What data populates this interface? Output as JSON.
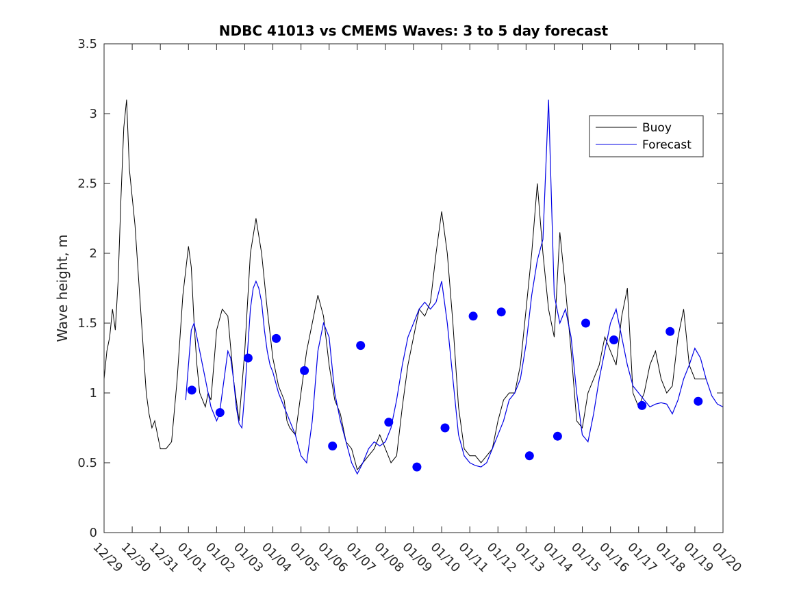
{
  "chart_data": {
    "type": "line",
    "title": "NDBC 41013 vs CMEMS Waves: 3 to 5 day forecast",
    "xlabel": "",
    "ylabel": "Wave height, m",
    "xlim": [
      0,
      22
    ],
    "ylim": [
      0,
      3.5
    ],
    "x_unit": "days since 12/29",
    "x_ticks": [
      0,
      1,
      2,
      3,
      4,
      5,
      6,
      7,
      8,
      9,
      10,
      11,
      12,
      13,
      14,
      15,
      16,
      17,
      18,
      19,
      20,
      21,
      22
    ],
    "x_tick_labels": [
      "12/29",
      "12/30",
      "12/31",
      "01/01",
      "01/02",
      "01/03",
      "01/04",
      "01/05",
      "01/06",
      "01/07",
      "01/08",
      "01/09",
      "01/10",
      "01/11",
      "01/12",
      "01/13",
      "01/14",
      "01/15",
      "01/16",
      "01/17",
      "01/18",
      "01/19",
      "01/20"
    ],
    "y_ticks": [
      0,
      0.5,
      1,
      1.5,
      2,
      2.5,
      3,
      3.5
    ],
    "y_tick_labels": [
      "0",
      "0.5",
      "1",
      "1.5",
      "2",
      "2.5",
      "3",
      "3.5"
    ],
    "legend": {
      "position": "top-right",
      "entries": [
        "Buoy",
        "Forecast"
      ]
    },
    "colors": {
      "buoy": "#000000",
      "forecast": "#0000e6",
      "marker": "#0000ff",
      "axis": "#262626"
    },
    "series": [
      {
        "name": "Buoy",
        "x": [
          0,
          0.1,
          0.2,
          0.3,
          0.4,
          0.5,
          0.6,
          0.7,
          0.8,
          0.9,
          1.0,
          1.1,
          1.2,
          1.3,
          1.4,
          1.5,
          1.6,
          1.7,
          1.8,
          1.9,
          2.0,
          2.2,
          2.4,
          2.6,
          2.8,
          3.0,
          3.1,
          3.2,
          3.3,
          3.4,
          3.5,
          3.6,
          3.7,
          3.8,
          3.9,
          4.0,
          4.2,
          4.4,
          4.6,
          4.8,
          5.0,
          5.2,
          5.4,
          5.6,
          5.8,
          6.0,
          6.1,
          6.2,
          6.3,
          6.4,
          6.5,
          6.6,
          6.8,
          7.0,
          7.2,
          7.4,
          7.6,
          7.8,
          8.0,
          8.2,
          8.4,
          8.6,
          8.8,
          9.0,
          9.2,
          9.4,
          9.6,
          9.8,
          10.0,
          10.2,
          10.4,
          10.6,
          10.8,
          11.0,
          11.2,
          11.4,
          11.6,
          11.8,
          12.0,
          12.2,
          12.4,
          12.6,
          12.8,
          13.0,
          13.2,
          13.4,
          13.6,
          13.8,
          14.0,
          14.2,
          14.4,
          14.6,
          14.8,
          15.0,
          15.2,
          15.4,
          15.6,
          15.8,
          16.0,
          16.2,
          16.4,
          16.6,
          16.8,
          17.0,
          17.2,
          17.4,
          17.6,
          17.8,
          18.0,
          18.2,
          18.4,
          18.6,
          18.8,
          19.0,
          19.2,
          19.4,
          19.6,
          19.8,
          20.0,
          20.2,
          20.4,
          20.6,
          20.8,
          21.0,
          21.1,
          21.2,
          21.4
        ],
        "y": [
          1.1,
          1.3,
          1.4,
          1.6,
          1.45,
          1.8,
          2.4,
          2.9,
          3.1,
          2.6,
          2.4,
          2.2,
          1.9,
          1.6,
          1.3,
          1.0,
          0.85,
          0.75,
          0.8,
          0.7,
          0.6,
          0.6,
          0.65,
          1.1,
          1.7,
          2.05,
          1.9,
          1.5,
          1.2,
          1.0,
          0.95,
          0.9,
          1.0,
          0.95,
          1.2,
          1.45,
          1.6,
          1.55,
          1.1,
          0.8,
          1.3,
          2.0,
          2.25,
          2.0,
          1.6,
          1.25,
          1.15,
          1.05,
          1.0,
          0.95,
          0.8,
          0.75,
          0.7,
          1.0,
          1.3,
          1.5,
          1.7,
          1.55,
          1.2,
          0.95,
          0.85,
          0.65,
          0.6,
          0.45,
          0.5,
          0.55,
          0.6,
          0.7,
          0.6,
          0.5,
          0.55,
          0.9,
          1.2,
          1.4,
          1.6,
          1.55,
          1.65,
          2.0,
          2.3,
          2.0,
          1.5,
          0.9,
          0.6,
          0.55,
          0.55,
          0.5,
          0.55,
          0.6,
          0.8,
          0.95,
          1.0,
          1.0,
          1.2,
          1.6,
          2.0,
          2.5,
          2.0,
          1.6,
          1.4,
          2.15,
          1.75,
          1.3,
          0.8,
          0.75,
          1.0,
          1.1,
          1.2,
          1.4,
          1.3,
          1.2,
          1.55,
          1.75,
          1.0,
          0.9,
          1.0,
          1.2,
          1.3,
          1.1,
          1.0,
          1.05,
          1.4,
          1.6,
          1.2,
          1.1,
          1.1,
          1.1,
          1.1
        ]
      },
      {
        "name": "Forecast",
        "x": [
          2.9,
          3.0,
          3.1,
          3.2,
          3.3,
          3.4,
          3.5,
          3.6,
          3.7,
          3.8,
          3.9,
          4.0,
          4.1,
          4.2,
          4.3,
          4.4,
          4.5,
          4.6,
          4.7,
          4.8,
          4.9,
          5.0,
          5.1,
          5.2,
          5.3,
          5.4,
          5.5,
          5.6,
          5.7,
          5.8,
          5.9,
          6.0,
          6.2,
          6.4,
          6.6,
          6.8,
          7.0,
          7.2,
          7.4,
          7.6,
          7.8,
          8.0,
          8.2,
          8.4,
          8.6,
          8.8,
          9.0,
          9.2,
          9.4,
          9.6,
          9.8,
          10.0,
          10.2,
          10.4,
          10.6,
          10.8,
          11.0,
          11.2,
          11.4,
          11.6,
          11.8,
          12.0,
          12.2,
          12.4,
          12.6,
          12.8,
          13.0,
          13.2,
          13.4,
          13.6,
          13.8,
          14.0,
          14.2,
          14.4,
          14.6,
          14.8,
          15.0,
          15.2,
          15.4,
          15.6,
          15.8,
          16.0,
          16.2,
          16.4,
          16.6,
          16.8,
          17.0,
          17.2,
          17.4,
          17.6,
          17.8,
          18.0,
          18.2,
          18.4,
          18.6,
          18.8,
          19.0,
          19.2,
          19.4,
          19.6,
          19.8,
          20.0,
          20.2,
          20.4,
          20.6,
          20.8,
          21.0,
          21.2,
          21.4,
          21.6,
          21.8,
          22.0
        ],
        "y": [
          0.95,
          1.2,
          1.45,
          1.5,
          1.4,
          1.3,
          1.2,
          1.1,
          1.0,
          0.9,
          0.85,
          0.8,
          0.85,
          1.0,
          1.15,
          1.3,
          1.25,
          1.1,
          0.9,
          0.78,
          0.75,
          1.0,
          1.3,
          1.6,
          1.75,
          1.8,
          1.75,
          1.65,
          1.45,
          1.3,
          1.2,
          1.15,
          1.0,
          0.9,
          0.8,
          0.7,
          0.55,
          0.5,
          0.8,
          1.3,
          1.5,
          1.4,
          1.0,
          0.8,
          0.65,
          0.5,
          0.42,
          0.5,
          0.6,
          0.65,
          0.62,
          0.65,
          0.75,
          0.95,
          1.2,
          1.4,
          1.5,
          1.6,
          1.65,
          1.6,
          1.65,
          1.8,
          1.5,
          1.1,
          0.7,
          0.55,
          0.5,
          0.48,
          0.47,
          0.5,
          0.6,
          0.7,
          0.8,
          0.95,
          1.0,
          1.1,
          1.35,
          1.7,
          1.95,
          2.1,
          3.1,
          1.7,
          1.5,
          1.6,
          1.4,
          1.0,
          0.7,
          0.65,
          0.85,
          1.1,
          1.3,
          1.5,
          1.6,
          1.4,
          1.2,
          1.05,
          1.0,
          0.95,
          0.9,
          0.92,
          0.93,
          0.92,
          0.85,
          0.95,
          1.1,
          1.2,
          1.32,
          1.25,
          1.1,
          0.98,
          0.92,
          0.9
        ]
      },
      {
        "name": "Forecast points",
        "x": [
          3.12,
          4.12,
          5.12,
          6.12,
          7.12,
          8.12,
          9.12,
          10.12,
          11.12,
          12.12,
          13.12,
          14.12,
          15.12,
          16.12,
          17.12,
          18.12,
          19.12,
          20.12,
          21.12
        ],
        "y": [
          1.02,
          0.86,
          1.25,
          1.39,
          1.16,
          0.62,
          1.34,
          0.79,
          0.47,
          0.75,
          1.55,
          1.58,
          0.55,
          0.69,
          1.5,
          1.38,
          0.91,
          1.44,
          0.94
        ]
      }
    ]
  }
}
